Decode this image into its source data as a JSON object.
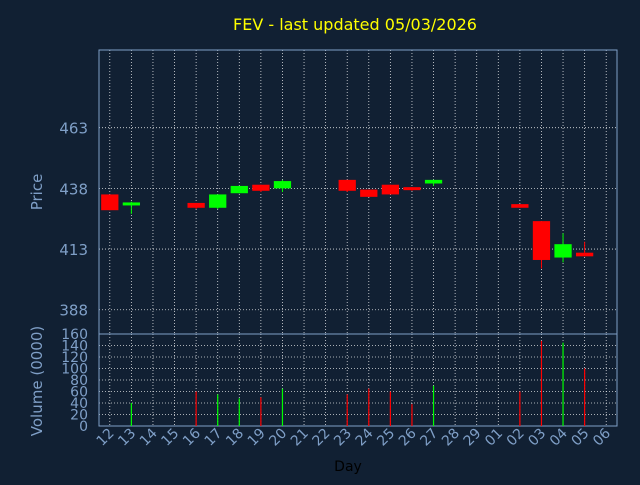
{
  "chart_data": [
    {
      "type": "candlestick",
      "title": "FEV - last updated 05/03/2026",
      "ylabel": "Price",
      "ylim": [
        378,
        495
      ],
      "yticks": [
        388,
        413,
        438,
        463
      ],
      "grid": true,
      "categories": [
        "12",
        "13",
        "14",
        "15",
        "16",
        "17",
        "18",
        "19",
        "20",
        "21",
        "22",
        "23",
        "24",
        "25",
        "26",
        "27",
        "28",
        "29",
        "01",
        "02",
        "03",
        "04",
        "05",
        "06"
      ],
      "candles": [
        {
          "day": "12",
          "open": 435.5,
          "close": 429.0,
          "high": 435.5,
          "low": 429.0
        },
        {
          "day": "13",
          "open": 431.5,
          "close": 432.2,
          "high": 432.5,
          "low": 427.5
        },
        {
          "day": "16",
          "open": 432.0,
          "close": 430.0,
          "high": 432.0,
          "low": 429.5
        },
        {
          "day": "17",
          "open": 430.0,
          "close": 435.5,
          "high": 435.5,
          "low": 429.5
        },
        {
          "day": "18",
          "open": 436.0,
          "close": 439.0,
          "high": 439.0,
          "low": 436.0
        },
        {
          "day": "19",
          "open": 439.5,
          "close": 437.0,
          "high": 439.5,
          "low": 436.5
        },
        {
          "day": "20",
          "open": 438.0,
          "close": 441.0,
          "high": 441.5,
          "low": 436.5
        },
        {
          "day": "23",
          "open": 441.5,
          "close": 437.0,
          "high": 441.5,
          "low": 436.5
        },
        {
          "day": "24",
          "open": 437.5,
          "close": 434.5,
          "high": 437.5,
          "low": 434.5
        },
        {
          "day": "25",
          "open": 439.5,
          "close": 435.5,
          "high": 439.5,
          "low": 435.5
        },
        {
          "day": "26",
          "open": 438.5,
          "close": 437.5,
          "high": 438.5,
          "low": 437.0
        },
        {
          "day": "27",
          "open": 440.0,
          "close": 441.5,
          "high": 441.5,
          "low": 439.0
        },
        {
          "day": "02",
          "open": 431.5,
          "close": 430.0,
          "high": 431.5,
          "low": 430.0
        },
        {
          "day": "03",
          "open": 424.5,
          "close": 408.5,
          "high": 424.5,
          "low": 405.0
        },
        {
          "day": "04",
          "open": 409.5,
          "close": 415.0,
          "high": 419.5,
          "low": 407.5
        },
        {
          "day": "05",
          "open": 411.5,
          "close": 410.0,
          "high": 416.0,
          "low": 410.0
        }
      ]
    },
    {
      "type": "bar",
      "ylabel": "Volume (0000)",
      "xlabel": "Day",
      "ylim": [
        0,
        160
      ],
      "yticks": [
        0,
        20,
        40,
        60,
        80,
        100,
        120,
        140,
        160
      ],
      "categories": [
        "12",
        "13",
        "14",
        "15",
        "16",
        "17",
        "18",
        "19",
        "20",
        "21",
        "22",
        "23",
        "24",
        "25",
        "26",
        "27",
        "28",
        "29",
        "01",
        "02",
        "03",
        "04",
        "05",
        "06"
      ],
      "volumes": [
        {
          "day": "13",
          "value": 40,
          "direction": "up"
        },
        {
          "day": "16",
          "value": 60,
          "direction": "down"
        },
        {
          "day": "17",
          "value": 55,
          "direction": "up"
        },
        {
          "day": "18",
          "value": 48,
          "direction": "up"
        },
        {
          "day": "19",
          "value": 50,
          "direction": "down"
        },
        {
          "day": "20",
          "value": 65,
          "direction": "up"
        },
        {
          "day": "23",
          "value": 55,
          "direction": "down"
        },
        {
          "day": "24",
          "value": 65,
          "direction": "down"
        },
        {
          "day": "25",
          "value": 60,
          "direction": "down"
        },
        {
          "day": "26",
          "value": 38,
          "direction": "down"
        },
        {
          "day": "27",
          "value": 70,
          "direction": "up"
        },
        {
          "day": "02",
          "value": 60,
          "direction": "down"
        },
        {
          "day": "03",
          "value": 148,
          "direction": "down"
        },
        {
          "day": "04",
          "value": 145,
          "direction": "up"
        },
        {
          "day": "05",
          "value": 100,
          "direction": "down"
        }
      ]
    }
  ],
  "colors": {
    "background": "#112033",
    "title": "#ffff00",
    "axis_text": "#7f9fc7",
    "grid": "#ffffff",
    "up": "#00ff00",
    "down": "#ff0000",
    "frame": "#7f9fc7"
  }
}
